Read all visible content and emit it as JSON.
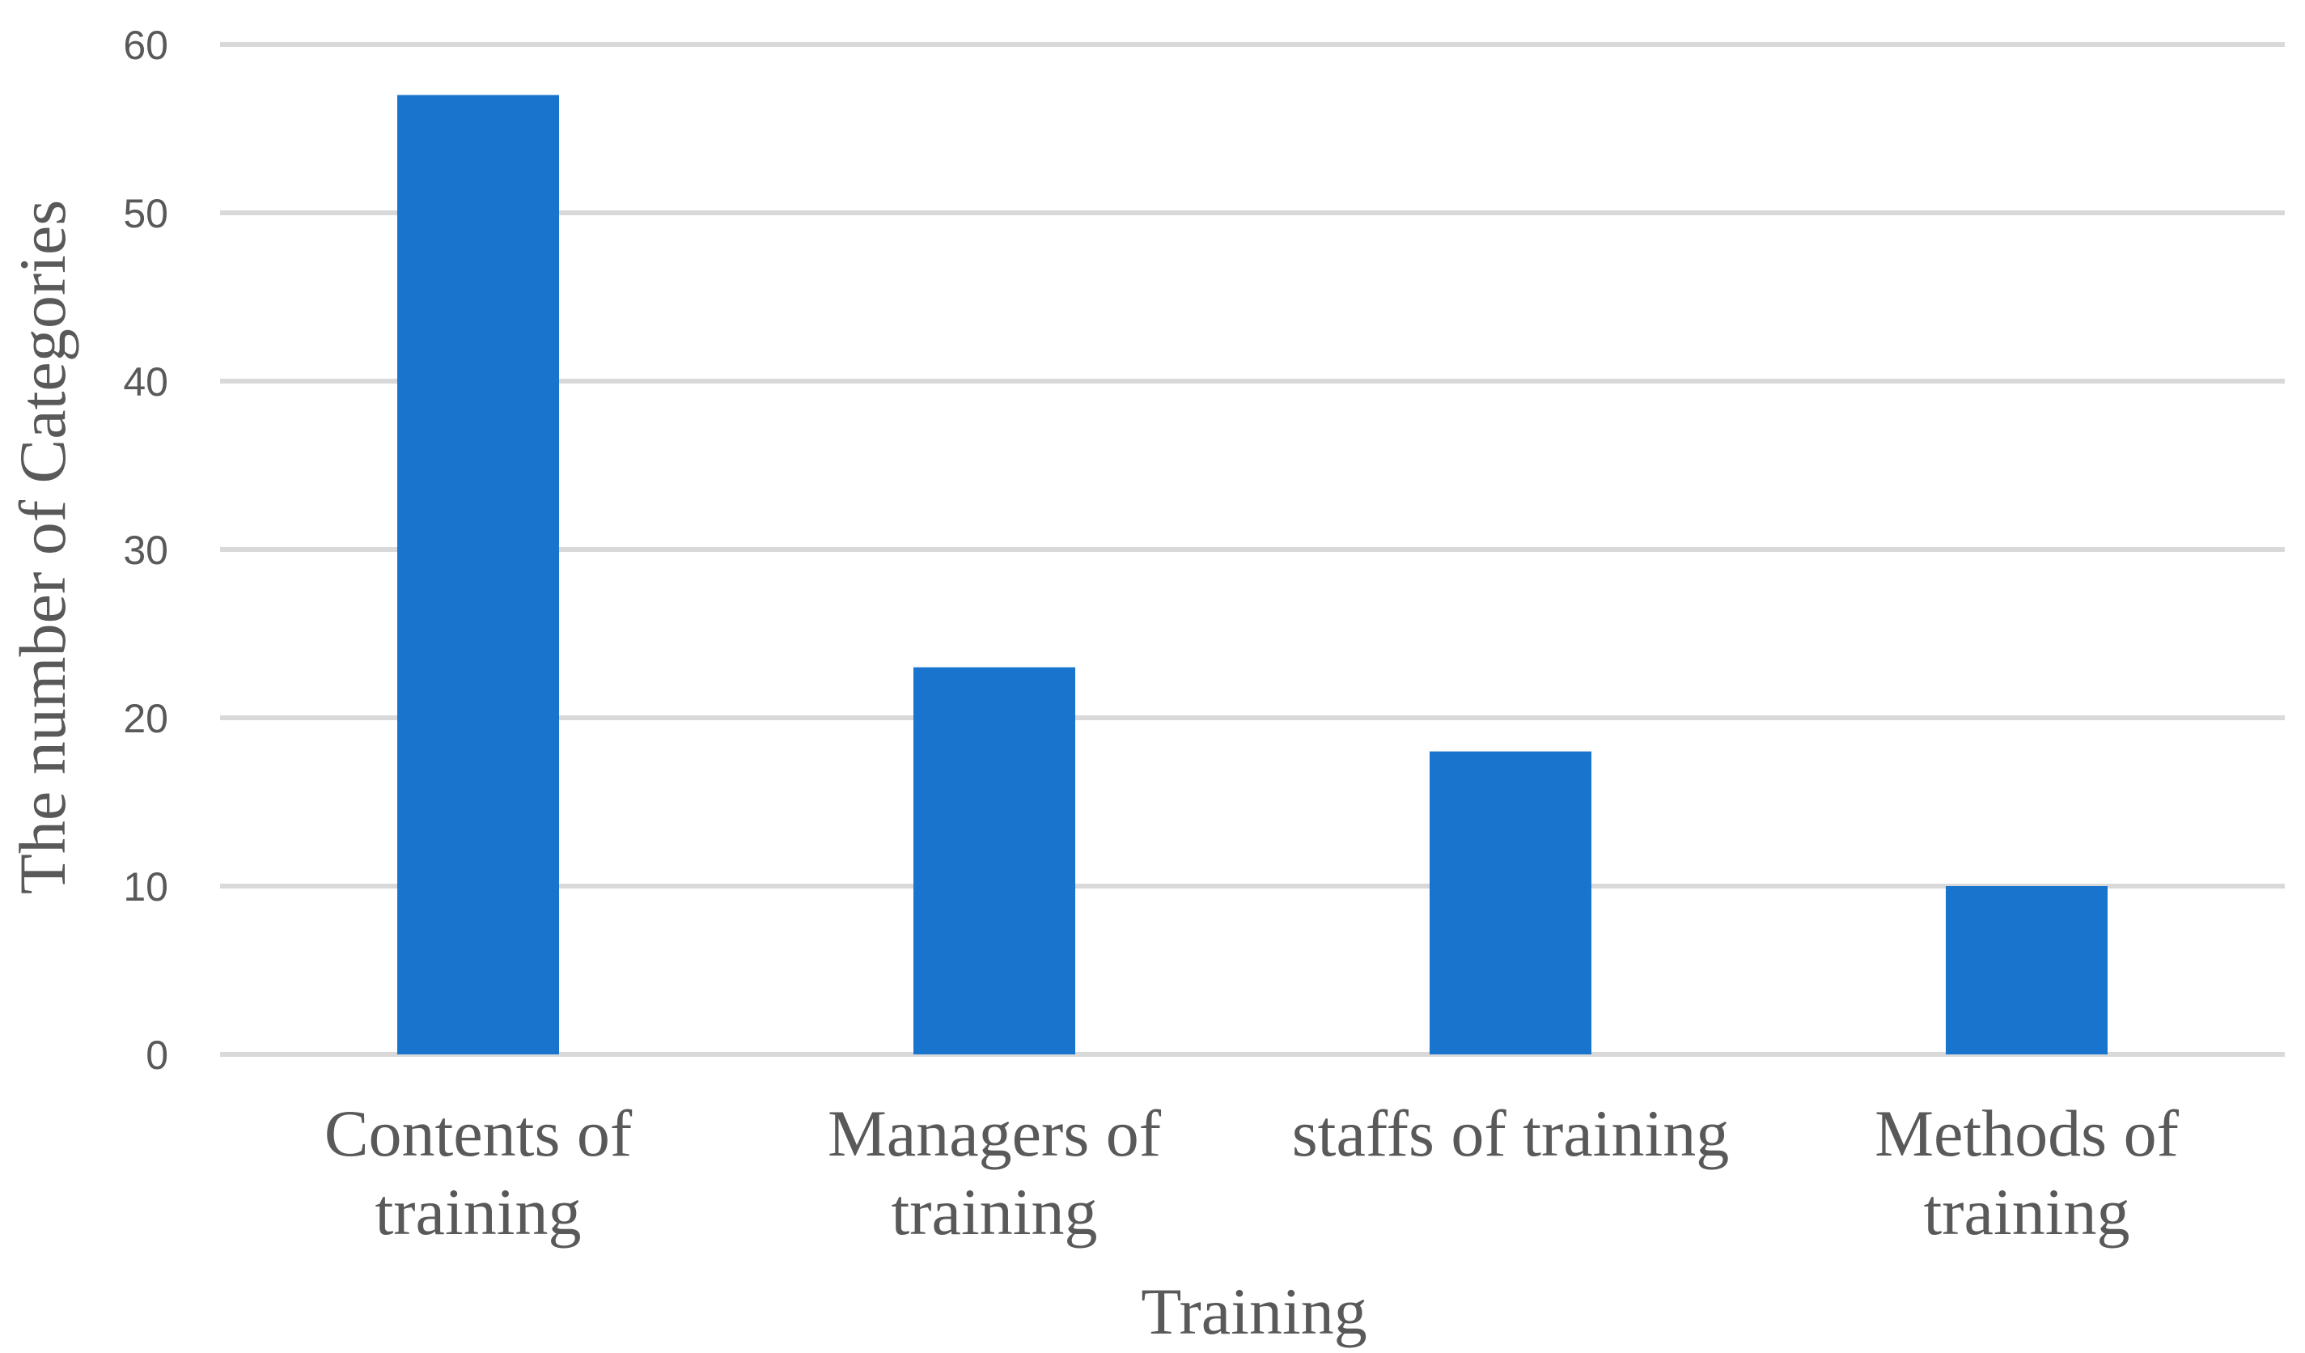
{
  "chart_data": {
    "type": "bar",
    "categories": [
      [
        "Contents of",
        "training"
      ],
      [
        "Managers of",
        "training"
      ],
      [
        "staffs of training"
      ],
      [
        "Methods of",
        "training"
      ]
    ],
    "values": [
      57,
      23,
      18,
      10
    ],
    "title": "",
    "xlabel": "Training",
    "ylabel": "The number of Categories",
    "ylim": [
      0,
      60
    ],
    "yticks": [
      0,
      10,
      20,
      30,
      40,
      50,
      60
    ],
    "grid": true,
    "legend": "none",
    "bar_color": "#1874CD"
  }
}
